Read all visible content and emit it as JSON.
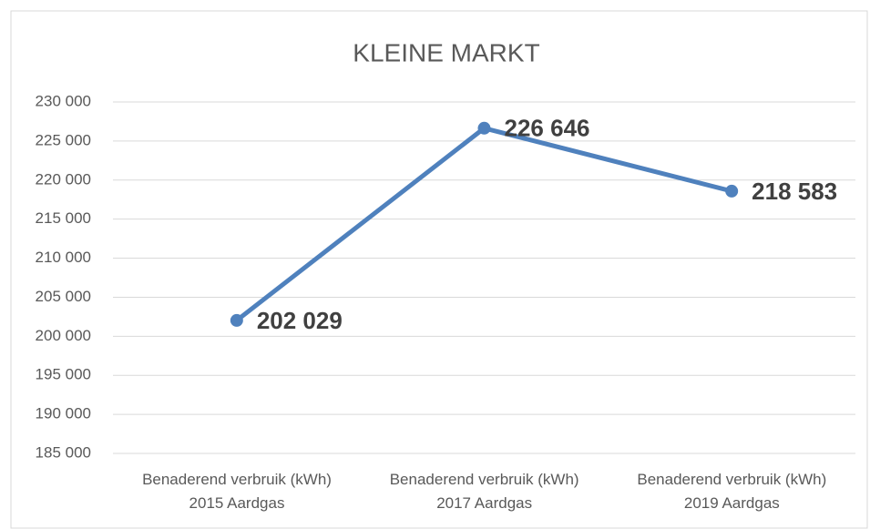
{
  "chart_data": {
    "type": "line",
    "title": "KLEINE MARKT",
    "categories": [
      "Benaderend verbruik (kWh)\n2015 Aardgas",
      "Benaderend verbruik (kWh)\n2017 Aardgas",
      "Benaderend verbruik (kWh)\n2019 Aardgas"
    ],
    "series": [
      {
        "name": "Aardgas",
        "color": "#4f81bd",
        "values": [
          202029,
          226646,
          218583
        ],
        "value_labels": [
          "202 029",
          "226 646",
          "218 583"
        ]
      }
    ],
    "ylim": [
      185000,
      230000
    ],
    "yticks": [
      {
        "value": 185000,
        "label": "185 000"
      },
      {
        "value": 190000,
        "label": "190 000"
      },
      {
        "value": 195000,
        "label": "195 000"
      },
      {
        "value": 200000,
        "label": "200 000"
      },
      {
        "value": 205000,
        "label": "205 000"
      },
      {
        "value": 210000,
        "label": "210 000"
      },
      {
        "value": 215000,
        "label": "215 000"
      },
      {
        "value": 220000,
        "label": "220 000"
      },
      {
        "value": 225000,
        "label": "225 000"
      },
      {
        "value": 230000,
        "label": "230 000"
      }
    ],
    "grid": true
  }
}
